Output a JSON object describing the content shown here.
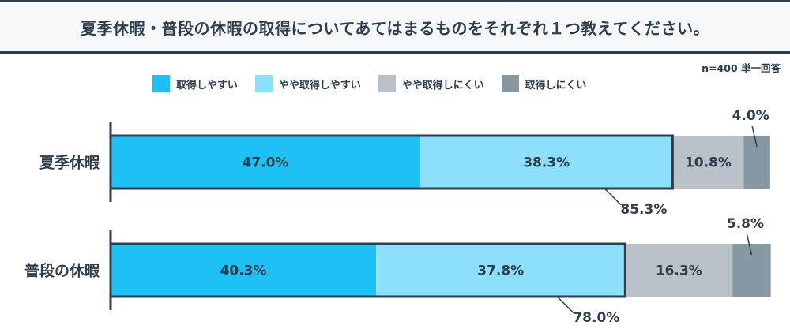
{
  "title": "夏季休暇・普段の休暇の取得についてあてはまるものをそれぞれ１つ教えてください。",
  "sample_note": "n=400 単一回答",
  "legend": [
    {
      "label": "取得しやすい",
      "color": "#1ec1f5"
    },
    {
      "label": "やや取得しやすい",
      "color": "#8de0fb"
    },
    {
      "label": "やや取得しにくい",
      "color": "#b9c2c9"
    },
    {
      "label": "取得しにくい",
      "color": "#8797a3"
    }
  ],
  "chart_data": {
    "type": "bar",
    "orientation": "horizontal",
    "stacked": true,
    "title": "夏季休暇・普段の休暇の取得についてあてはまるものをそれぞれ１つ教えてください。",
    "categories": [
      "夏季休暇",
      "普段の休暇"
    ],
    "series": [
      {
        "name": "取得しやすい",
        "values": [
          47.0,
          40.3
        ],
        "labels": [
          "47.0%",
          "40.3%"
        ]
      },
      {
        "name": "やや取得しやすい",
        "values": [
          38.3,
          37.8
        ],
        "labels": [
          "38.3%",
          "37.8%"
        ]
      },
      {
        "name": "やや取得しにくい",
        "values": [
          10.8,
          16.3
        ],
        "labels": [
          "10.8%",
          "16.3%"
        ]
      },
      {
        "name": "取得しにくい",
        "values": [
          4.0,
          5.8
        ],
        "labels": [
          "4.0%",
          "5.8%"
        ]
      }
    ],
    "cumulative_labels": [
      "85.3%",
      "78.0%"
    ],
    "xlim": [
      0,
      100
    ],
    "legend_position": "top"
  }
}
